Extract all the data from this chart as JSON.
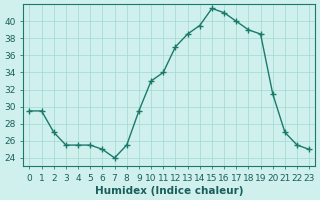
{
  "x": [
    0,
    1,
    2,
    3,
    4,
    5,
    6,
    7,
    8,
    9,
    10,
    11,
    12,
    13,
    14,
    15,
    16,
    17,
    18,
    19,
    20,
    21,
    22,
    23
  ],
  "y": [
    29.5,
    29.5,
    27.0,
    25.5,
    25.5,
    25.5,
    25.0,
    24.0,
    25.5,
    29.5,
    33.0,
    34.0,
    37.0,
    38.5,
    39.5,
    41.5,
    41.0,
    40.0,
    39.0,
    38.5,
    31.5,
    27.0,
    25.5,
    25.0
  ],
  "xlabel": "Humidex (Indice chaleur)",
  "ylim": [
    23,
    42
  ],
  "xlim": [
    -0.5,
    23.5
  ],
  "yticks": [
    24,
    26,
    28,
    30,
    32,
    34,
    36,
    38,
    40
  ],
  "ytick_labels": [
    "24",
    "26",
    "28",
    "30",
    "32",
    "34",
    "36",
    "38",
    "40"
  ],
  "xticks": [
    0,
    1,
    2,
    3,
    4,
    5,
    6,
    7,
    8,
    9,
    10,
    11,
    12,
    13,
    14,
    15,
    16,
    17,
    18,
    19,
    20,
    21,
    22,
    23
  ],
  "xtick_labels": [
    "0",
    "1",
    "2",
    "3",
    "4",
    "5",
    "6",
    "7",
    "8",
    "9",
    "10",
    "11",
    "12",
    "13",
    "14",
    "15",
    "16",
    "17",
    "18",
    "19",
    "20",
    "21",
    "22",
    "23"
  ],
  "line_color": "#1a7a6a",
  "marker_color": "#1a7a6a",
  "bg_color": "#d0f0ee",
  "grid_color": "#a0d8d0",
  "axis_color": "#1a7a6a",
  "label_color": "#1a5f5a",
  "font_size": 6.5
}
